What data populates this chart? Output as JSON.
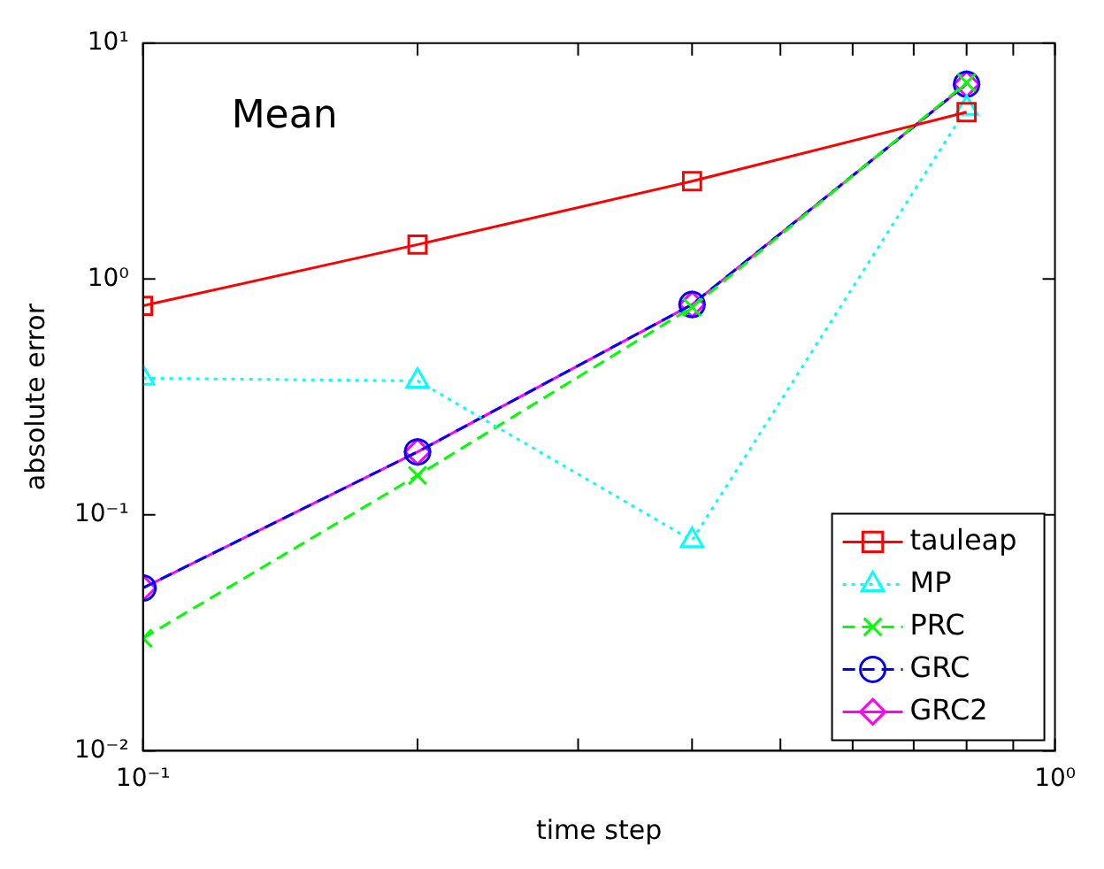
{
  "chart_data": {
    "type": "line",
    "xlabel": "time step",
    "ylabel": "absolute error",
    "annotations": [
      "Mean"
    ],
    "log": "xy",
    "grid": false,
    "legend": "bottom right",
    "x": [
      0.1,
      0.2,
      0.4,
      0.8
    ],
    "xlim": [
      0.1,
      1
    ],
    "xticks": [
      {
        "value": 0.1,
        "label": "10⁻¹"
      },
      {
        "value": 0.2,
        "label": null
      },
      {
        "value": 0.3,
        "label": null
      },
      {
        "value": 0.4,
        "label": null
      },
      {
        "value": 0.5,
        "label": null
      },
      {
        "value": 0.6,
        "label": null
      },
      {
        "value": 0.7,
        "label": null
      },
      {
        "value": 0.8,
        "label": null
      },
      {
        "value": 0.9,
        "label": null
      },
      {
        "value": 1,
        "label": "10⁰"
      }
    ],
    "ylim": [
      0.01,
      10
    ],
    "yticks": [
      {
        "value": 0.01,
        "label": "10⁻²"
      },
      {
        "value": 0.1,
        "label": "10⁻¹"
      },
      {
        "value": 1,
        "label": "10⁰"
      },
      {
        "value": 10,
        "label": "10¹"
      }
    ],
    "series": [
      {
        "name": "tauleap",
        "color": "#ff0000",
        "marker": "square",
        "line_style": "solid",
        "values": [
          0.77,
          1.4,
          2.6,
          5.1
        ]
      },
      {
        "name": "MP",
        "color": "#00ffff",
        "marker": "triangle",
        "line_style": "dotted",
        "values": [
          0.38,
          0.37,
          0.078,
          5.3
        ]
      },
      {
        "name": "PRC",
        "color": "#00ff00",
        "marker": "cross",
        "line_style": "dashed",
        "values": [
          0.03,
          0.147,
          0.76,
          6.8
        ]
      },
      {
        "name": "GRC",
        "color": "#0000ff",
        "marker": "circle",
        "line_style": "dashed",
        "values": [
          0.049,
          0.185,
          0.78,
          6.7
        ]
      },
      {
        "name": "GRC2",
        "color": "#ff00ff",
        "marker": "diamond",
        "line_style": "solid",
        "values": [
          0.049,
          0.185,
          0.78,
          6.7
        ]
      }
    ]
  }
}
